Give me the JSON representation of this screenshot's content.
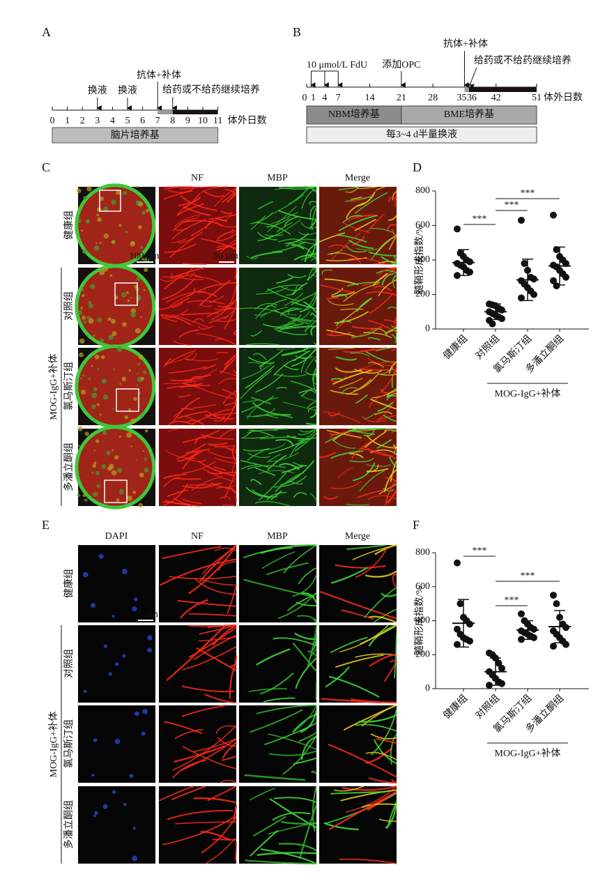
{
  "panel_a": {
    "label": "A",
    "events": [
      "换液",
      "换液",
      "抗体+补体",
      "给药或不给药继续培养"
    ],
    "ticks": [
      0,
      1,
      2,
      3,
      4,
      5,
      6,
      7,
      8,
      9,
      10,
      11
    ],
    "axis_label": "体外日数",
    "medium": "脑片培养基"
  },
  "panel_b": {
    "label": "B",
    "events": [
      "10 μmol/L FdU",
      "添加OPC",
      "抗体+补体",
      "给药或不给药继续培养"
    ],
    "ticks": [
      0,
      1,
      4,
      7,
      14,
      21,
      28,
      35,
      36,
      42,
      51
    ],
    "axis_label": "体外日数",
    "media": [
      "NBM培养基",
      "BME培养基"
    ],
    "medium_change": "每3~4 d半量换液"
  },
  "panel_c": {
    "label": "C",
    "channels": [
      "NF",
      "MBP",
      "Merge"
    ],
    "groups": [
      "健康组",
      "对照组",
      "氯马斯汀组",
      "多潘立酮组"
    ],
    "treatment_label": "MOG-IgG+补体",
    "scale_bars": [
      "100 μm",
      "50 μm"
    ]
  },
  "panel_d": {
    "label": "D",
    "type": "scatter",
    "y_label": "髓鞘形成指数/%",
    "categories": [
      "健康组",
      "对照组",
      "氯马斯汀组",
      "多潘立酮组"
    ],
    "group_label": "MOG-IgG+补体",
    "ylim": [
      0,
      800
    ],
    "yticks": [
      0,
      200,
      400,
      600,
      800
    ],
    "points": [
      [
        580,
        440,
        420,
        400,
        390,
        380,
        370,
        360,
        340,
        330,
        310
      ],
      [
        145,
        140,
        135,
        120,
        110,
        100,
        90,
        80,
        70,
        60,
        50,
        30
      ],
      [
        630,
        380,
        340,
        300,
        290,
        280,
        260,
        240,
        220,
        200,
        180
      ],
      [
        660,
        460,
        420,
        400,
        380,
        370,
        360,
        340,
        320,
        300,
        280,
        250
      ]
    ],
    "mean": [
      385,
      100,
      285,
      365
    ],
    "sd": [
      75,
      45,
      120,
      110
    ],
    "significance": [
      "***",
      "***",
      "***"
    ]
  },
  "panel_e": {
    "label": "E",
    "channels": [
      "DAPI",
      "NF",
      "MBP",
      "Merge"
    ],
    "groups": [
      "健康组",
      "对照组",
      "氯马斯汀组",
      "多潘立酮组"
    ],
    "treatment_label": "MOG-IgG+补体",
    "scale_bars": [
      "25 μm"
    ]
  },
  "panel_f": {
    "label": "F",
    "type": "scatter",
    "y_label": "髓鞘形成指数/%",
    "categories": [
      "健康组",
      "对照组",
      "氯马斯汀组",
      "多潘立酮组"
    ],
    "group_label": "MOG-IgG+补体",
    "ylim": [
      0,
      800
    ],
    "yticks": [
      0,
      200,
      400,
      600,
      800
    ],
    "points": [
      [
        740,
        500,
        420,
        400,
        380,
        350,
        320,
        300,
        290,
        280,
        260
      ],
      [
        210,
        200,
        180,
        150,
        120,
        100,
        80,
        60,
        40,
        30,
        20
      ],
      [
        440,
        400,
        380,
        360,
        350,
        340,
        330,
        320,
        310,
        300,
        290
      ],
      [
        550,
        500,
        420,
        380,
        360,
        340,
        320,
        300,
        280,
        260,
        250
      ]
    ],
    "mean": [
      385,
      100,
      345,
      365
    ],
    "sd": [
      140,
      80,
      55,
      95
    ],
    "significance": [
      "***",
      "***",
      "***"
    ]
  }
}
